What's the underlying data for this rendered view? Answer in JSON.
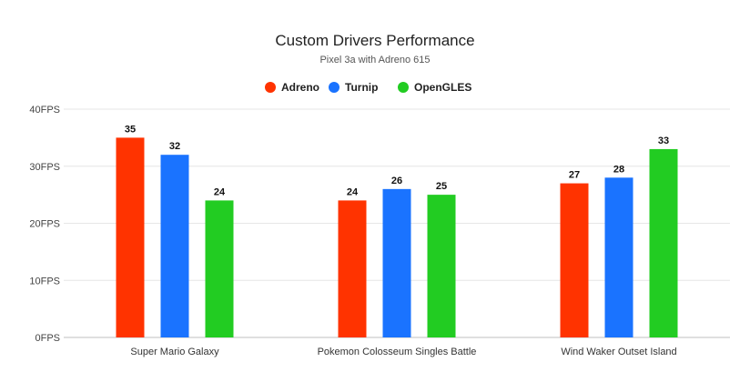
{
  "chart_data": {
    "type": "bar",
    "title": "Custom Drivers Performance",
    "subtitle": "Pixel 3a with Adreno 615",
    "xlabel": "",
    "ylabel": "",
    "categories": [
      "Super Mario Galaxy",
      "Pokemon Colosseum Singles Battle",
      "Wind Waker Outset Island"
    ],
    "series": [
      {
        "name": "Adreno",
        "color": "#ff3300",
        "values": [
          35,
          24,
          27
        ]
      },
      {
        "name": "Turnip",
        "color": "#1a73ff",
        "values": [
          32,
          26,
          28
        ]
      },
      {
        "name": "OpenGLES",
        "color": "#22cc22",
        "values": [
          24,
          25,
          33
        ]
      }
    ],
    "ylim": [
      0,
      40
    ],
    "yticks": [
      0,
      10,
      20,
      30,
      40
    ],
    "ytick_labels": [
      "0FPS",
      "10FPS",
      "20FPS",
      "30FPS",
      "40FPS"
    ],
    "legend": "top",
    "grid": true,
    "data_labels": true
  }
}
